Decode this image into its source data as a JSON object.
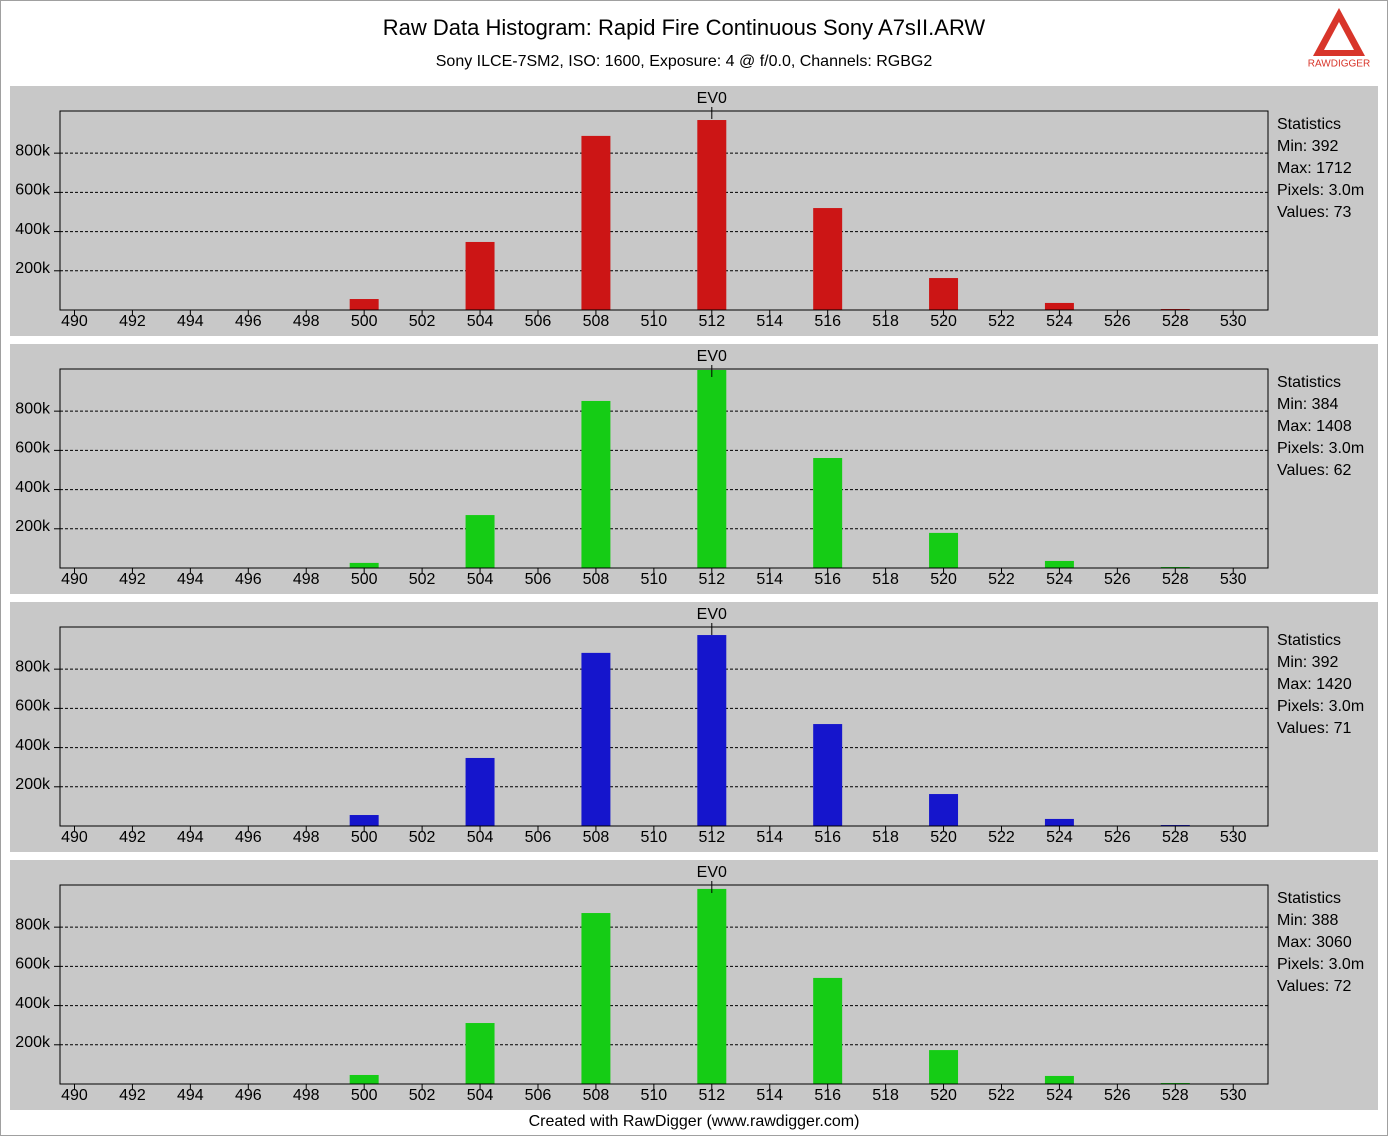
{
  "header": {
    "title": "Raw Data Histogram: Rapid Fire Continuous Sony A7sII.ARW",
    "subtitle": "Sony ILCE-7SM2, ISO: 1600, Exposure: 4 @ f/0.0, Channels: RGBG2",
    "logo": "RAWDIGGER"
  },
  "footer": "Created with RawDigger (www.rawdigger.com)",
  "chart_data": [
    {
      "type": "bar",
      "color": "#cc1515",
      "annotation": {
        "text": "EV0",
        "x": 512
      },
      "x": [
        490,
        492,
        494,
        496,
        498,
        500,
        502,
        504,
        506,
        508,
        510,
        512,
        514,
        516,
        518,
        520,
        522,
        524,
        526,
        528,
        530
      ],
      "values": [
        0,
        0,
        0,
        0,
        0,
        56000,
        0,
        347000,
        0,
        888000,
        0,
        969000,
        0,
        520000,
        0,
        163000,
        0,
        36000,
        0,
        5000,
        0
      ],
      "xlim": [
        489.5,
        531.2
      ],
      "ylim": [
        0,
        1015000
      ],
      "xticks": [
        490,
        492,
        494,
        496,
        498,
        500,
        502,
        504,
        506,
        508,
        510,
        512,
        514,
        516,
        518,
        520,
        522,
        524,
        526,
        528,
        530
      ],
      "yticks": [
        {
          "value": 200000,
          "label": "200k"
        },
        {
          "value": 400000,
          "label": "400k"
        },
        {
          "value": 600000,
          "label": "600k"
        },
        {
          "value": 800000,
          "label": "800k"
        }
      ],
      "grid": true,
      "stats": [
        "Statistics",
        "Min: 392",
        "Max: 1712",
        "Pixels: 3.0m",
        "Values: 73"
      ]
    },
    {
      "type": "bar",
      "color": "#15cc15",
      "annotation": {
        "text": "EV0",
        "x": 512
      },
      "x": [
        490,
        492,
        494,
        496,
        498,
        500,
        502,
        504,
        506,
        508,
        510,
        512,
        514,
        516,
        518,
        520,
        522,
        524,
        526,
        528,
        530
      ],
      "values": [
        0,
        0,
        0,
        0,
        0,
        26000,
        0,
        270000,
        0,
        852000,
        0,
        1010000,
        0,
        561000,
        0,
        179000,
        0,
        36000,
        0,
        5000,
        0
      ],
      "xlim": [
        489.5,
        531.2
      ],
      "ylim": [
        0,
        1015000
      ],
      "xticks": [
        490,
        492,
        494,
        496,
        498,
        500,
        502,
        504,
        506,
        508,
        510,
        512,
        514,
        516,
        518,
        520,
        522,
        524,
        526,
        528,
        530
      ],
      "yticks": [
        {
          "value": 200000,
          "label": "200k"
        },
        {
          "value": 400000,
          "label": "400k"
        },
        {
          "value": 600000,
          "label": "600k"
        },
        {
          "value": 800000,
          "label": "800k"
        }
      ],
      "grid": true,
      "stats": [
        "Statistics",
        "Min: 384",
        "Max: 1408",
        "Pixels: 3.0m",
        "Values: 62"
      ]
    },
    {
      "type": "bar",
      "color": "#1515cc",
      "annotation": {
        "text": "EV0",
        "x": 512
      },
      "x": [
        490,
        492,
        494,
        496,
        498,
        500,
        502,
        504,
        506,
        508,
        510,
        512,
        514,
        516,
        518,
        520,
        522,
        524,
        526,
        528,
        530
      ],
      "values": [
        0,
        0,
        0,
        0,
        0,
        56000,
        0,
        347000,
        0,
        883000,
        0,
        974000,
        0,
        520000,
        0,
        163000,
        0,
        36000,
        0,
        5000,
        0
      ],
      "xlim": [
        489.5,
        531.2
      ],
      "ylim": [
        0,
        1015000
      ],
      "xticks": [
        490,
        492,
        494,
        496,
        498,
        500,
        502,
        504,
        506,
        508,
        510,
        512,
        514,
        516,
        518,
        520,
        522,
        524,
        526,
        528,
        530
      ],
      "yticks": [
        {
          "value": 200000,
          "label": "200k"
        },
        {
          "value": 400000,
          "label": "400k"
        },
        {
          "value": 600000,
          "label": "600k"
        },
        {
          "value": 800000,
          "label": "800k"
        }
      ],
      "grid": true,
      "stats": [
        "Statistics",
        "Min: 392",
        "Max: 1420",
        "Pixels: 3.0m",
        "Values: 71"
      ]
    },
    {
      "type": "bar",
      "color": "#15cc15",
      "annotation": {
        "text": "EV0",
        "x": 512
      },
      "x": [
        490,
        492,
        494,
        496,
        498,
        500,
        502,
        504,
        506,
        508,
        510,
        512,
        514,
        516,
        518,
        520,
        522,
        524,
        526,
        528,
        530
      ],
      "values": [
        0,
        0,
        0,
        0,
        0,
        46000,
        0,
        311000,
        0,
        872000,
        0,
        995000,
        0,
        541000,
        0,
        173000,
        0,
        41000,
        0,
        5000,
        0
      ],
      "xlim": [
        489.5,
        531.2
      ],
      "ylim": [
        0,
        1015000
      ],
      "xticks": [
        490,
        492,
        494,
        496,
        498,
        500,
        502,
        504,
        506,
        508,
        510,
        512,
        514,
        516,
        518,
        520,
        522,
        524,
        526,
        528,
        530
      ],
      "yticks": [
        {
          "value": 200000,
          "label": "200k"
        },
        {
          "value": 400000,
          "label": "400k"
        },
        {
          "value": 600000,
          "label": "600k"
        },
        {
          "value": 800000,
          "label": "800k"
        }
      ],
      "grid": true,
      "stats": [
        "Statistics",
        "Min: 388",
        "Max: 3060",
        "Pixels: 3.0m",
        "Values: 72"
      ]
    }
  ]
}
